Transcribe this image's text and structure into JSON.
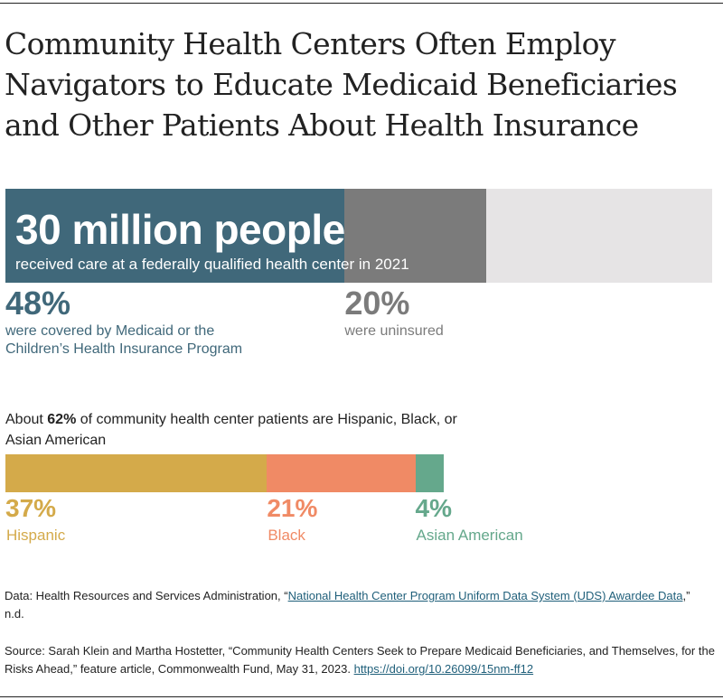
{
  "title": "Community Health Centers Often Employ Navigators to Educate Medicaid Beneficiaries and Other Patients About Health Insurance",
  "colors": {
    "medicaid": "#40687a",
    "uninsured": "#7b7b7b",
    "remainder": "#e6e4e5",
    "hispanic": "#d4aa4a",
    "black": "#f08a65",
    "asian": "#65a88c"
  },
  "chart_data": [
    {
      "type": "bar",
      "orientation": "horizontal-stacked",
      "headline": "30 million people",
      "subheadline": "received care at a federally qualified health center in 2021",
      "xlim": [
        0,
        100
      ],
      "series": [
        {
          "name": "Medicaid/CHIP",
          "value": 48,
          "label": "48%",
          "description": "were covered by Medicaid or the Children’s Health Insurance Program"
        },
        {
          "name": "Uninsured",
          "value": 20,
          "label": "20%",
          "description": "were uninsured"
        }
      ]
    },
    {
      "type": "bar",
      "orientation": "horizontal-stacked",
      "intro_pre": "About ",
      "intro_bold": "62%",
      "intro_post": " of community health center patients are Hispanic, Black, or Asian American",
      "xlim": [
        0,
        100
      ],
      "series": [
        {
          "name": "Hispanic",
          "value": 37,
          "label": "37%"
        },
        {
          "name": "Black",
          "value": 21,
          "label": "21%"
        },
        {
          "name": "Asian American",
          "value": 4,
          "label": "4%"
        }
      ]
    }
  ],
  "notes": {
    "data_pre": "Data: Health Resources and Services Administration, “",
    "data_link": "National Health Center Program Uniform Data System (UDS) Awardee Data",
    "data_post": ",” n.d.",
    "source_text": "Source: Sarah Klein and Martha Hostetter, “Community Health Centers Seek to Prepare Medicaid Beneficiaries, and Themselves, for the Risks Ahead,” feature article, Commonwealth Fund, May 31, 2023. ",
    "source_link": "https://doi.org/10.26099/15nm-ff12"
  }
}
